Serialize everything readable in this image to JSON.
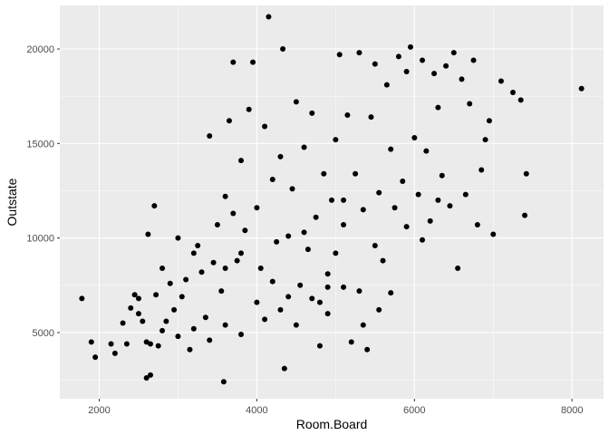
{
  "chart_data": {
    "type": "scatter",
    "xlabel": "Room.Board",
    "ylabel": "Outstate",
    "xlim": [
      1500,
      8400
    ],
    "ylim": [
      1500,
      22300
    ],
    "x_ticks": [
      2000,
      4000,
      6000,
      8000
    ],
    "y_ticks": [
      5000,
      10000,
      15000,
      20000
    ],
    "x_tick_labels": [
      "2000",
      "4000",
      "6000",
      "8000"
    ],
    "y_tick_labels": [
      "5000",
      "10000",
      "15000",
      "20000"
    ],
    "grid": true,
    "legend": "none",
    "colors": {
      "panel": "#ebebeb",
      "grid": "#ffffff",
      "point": "#000000",
      "tick_text": "#4d4d4d"
    },
    "points": [
      [
        1780,
        6800
      ],
      [
        1900,
        4500
      ],
      [
        1950,
        3700
      ],
      [
        2150,
        4400
      ],
      [
        2200,
        3900
      ],
      [
        2350,
        4400
      ],
      [
        2400,
        6300
      ],
      [
        2450,
        7000
      ],
      [
        2500,
        6800
      ],
      [
        2550,
        5600
      ],
      [
        2600,
        4500
      ],
      [
        2620,
        10200
      ],
      [
        2650,
        4400
      ],
      [
        2700,
        11700
      ],
      [
        2720,
        7000
      ],
      [
        2750,
        4300
      ],
      [
        2800,
        8400
      ],
      [
        2850,
        5600
      ],
      [
        2900,
        7600
      ],
      [
        2950,
        6200
      ],
      [
        3000,
        10000
      ],
      [
        3050,
        6900
      ],
      [
        3100,
        7800
      ],
      [
        3150,
        4100
      ],
      [
        3200,
        9200
      ],
      [
        3250,
        9600
      ],
      [
        3300,
        8200
      ],
      [
        3350,
        5800
      ],
      [
        3400,
        15400
      ],
      [
        3450,
        8700
      ],
      [
        3500,
        10700
      ],
      [
        3550,
        7200
      ],
      [
        3600,
        12200
      ],
      [
        3650,
        16200
      ],
      [
        3700,
        19300
      ],
      [
        3750,
        8800
      ],
      [
        3800,
        14100
      ],
      [
        3850,
        10400
      ],
      [
        3900,
        16800
      ],
      [
        3950,
        19300
      ],
      [
        4000,
        11600
      ],
      [
        4050,
        8400
      ],
      [
        4100,
        15900
      ],
      [
        4150,
        21700
      ],
      [
        4200,
        13100
      ],
      [
        4250,
        9800
      ],
      [
        4300,
        14300
      ],
      [
        4330,
        20000
      ],
      [
        4350,
        3100
      ],
      [
        4400,
        10100
      ],
      [
        4450,
        12600
      ],
      [
        4500,
        17200
      ],
      [
        4550,
        7500
      ],
      [
        4600,
        14800
      ],
      [
        4650,
        9400
      ],
      [
        4700,
        16600
      ],
      [
        4750,
        11100
      ],
      [
        4800,
        6600
      ],
      [
        4850,
        13400
      ],
      [
        4900,
        8100
      ],
      [
        4950,
        12000
      ],
      [
        5000,
        15200
      ],
      [
        5050,
        19700
      ],
      [
        5100,
        10700
      ],
      [
        5150,
        16500
      ],
      [
        5200,
        4500
      ],
      [
        5250,
        13400
      ],
      [
        5300,
        19800
      ],
      [
        5350,
        11500
      ],
      [
        5400,
        4100
      ],
      [
        5450,
        16400
      ],
      [
        5500,
        19200
      ],
      [
        5550,
        12400
      ],
      [
        5600,
        8800
      ],
      [
        5650,
        18100
      ],
      [
        5700,
        14700
      ],
      [
        5750,
        11600
      ],
      [
        5800,
        19600
      ],
      [
        5850,
        13000
      ],
      [
        5900,
        18800
      ],
      [
        5950,
        20100
      ],
      [
        6000,
        15300
      ],
      [
        6050,
        12300
      ],
      [
        6100,
        19400
      ],
      [
        6150,
        14600
      ],
      [
        6200,
        10900
      ],
      [
        6250,
        18700
      ],
      [
        6300,
        16900
      ],
      [
        6350,
        13300
      ],
      [
        6400,
        19100
      ],
      [
        6450,
        11700
      ],
      [
        6500,
        19800
      ],
      [
        6550,
        8400
      ],
      [
        6600,
        18400
      ],
      [
        6650,
        12300
      ],
      [
        6700,
        17100
      ],
      [
        6750,
        19400
      ],
      [
        6800,
        10700
      ],
      [
        6850,
        13600
      ],
      [
        6900,
        15200
      ],
      [
        6950,
        16200
      ],
      [
        7000,
        10200
      ],
      [
        7100,
        18300
      ],
      [
        7250,
        17700
      ],
      [
        7350,
        17300
      ],
      [
        7400,
        11200
      ],
      [
        7420,
        13400
      ],
      [
        8120,
        17900
      ],
      [
        2600,
        2600
      ],
      [
        2650,
        2750
      ],
      [
        3580,
        2400
      ],
      [
        3600,
        8400
      ],
      [
        3700,
        11300
      ],
      [
        3800,
        9200
      ],
      [
        4000,
        6600
      ],
      [
        4200,
        7700
      ],
      [
        4400,
        6900
      ],
      [
        4600,
        10300
      ],
      [
        4800,
        4300
      ],
      [
        4900,
        7400
      ],
      [
        5000,
        9200
      ],
      [
        5100,
        12000
      ],
      [
        5300,
        7200
      ],
      [
        5500,
        9600
      ],
      [
        5700,
        7100
      ],
      [
        5900,
        10600
      ],
      [
        6100,
        9900
      ],
      [
        6300,
        12000
      ],
      [
        2300,
        5500
      ],
      [
        2500,
        6000
      ],
      [
        2800,
        5100
      ],
      [
        3000,
        4800
      ],
      [
        3200,
        5200
      ],
      [
        3400,
        4600
      ],
      [
        3600,
        5400
      ],
      [
        3800,
        4900
      ],
      [
        4100,
        5700
      ],
      [
        4300,
        6200
      ],
      [
        4500,
        5400
      ],
      [
        4700,
        6800
      ],
      [
        4900,
        6000
      ],
      [
        5100,
        7400
      ],
      [
        5350,
        5400
      ],
      [
        5550,
        6200
      ]
    ]
  }
}
